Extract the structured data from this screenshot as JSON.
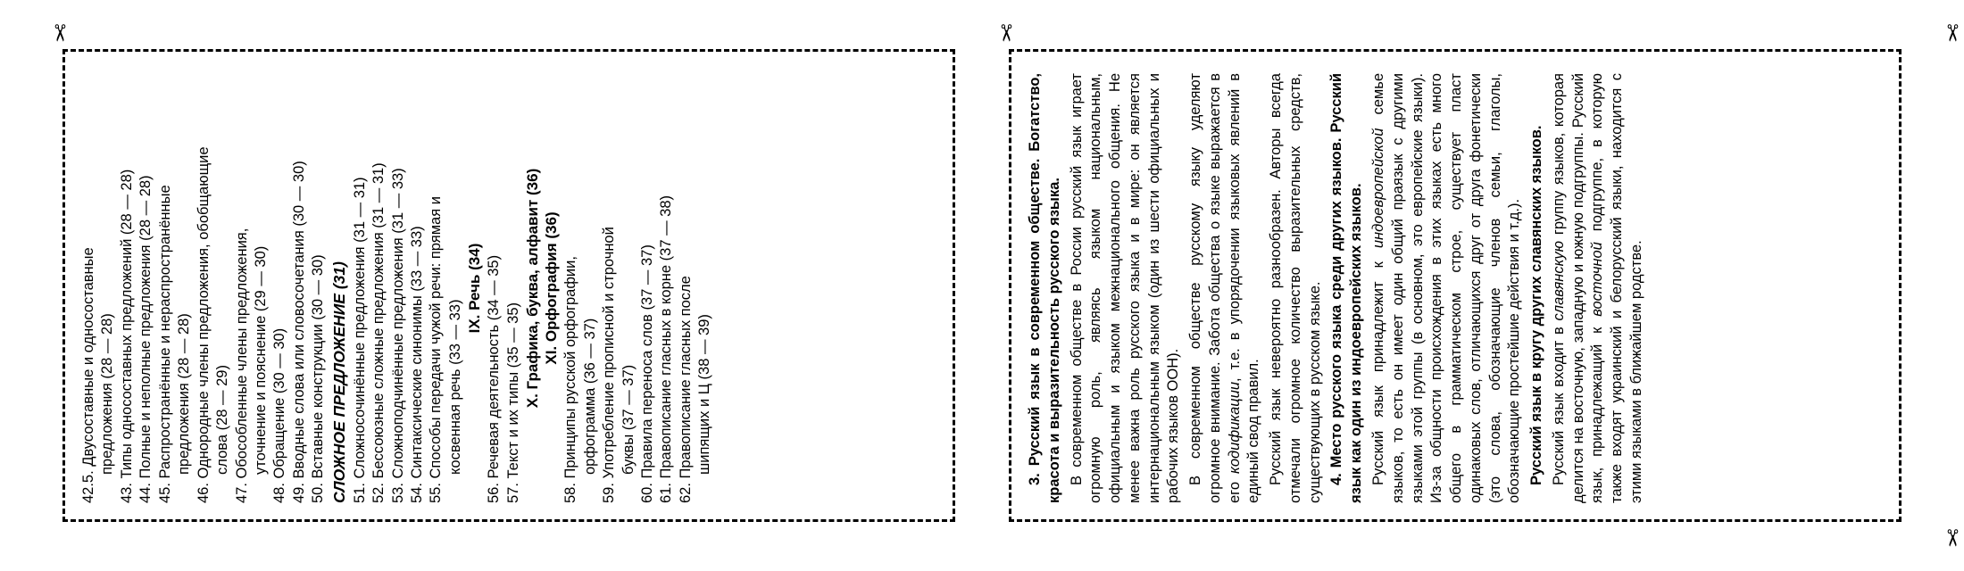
{
  "scissors": "✂",
  "left": {
    "toc": [
      {
        "t": "42.5. Двусоставные и односоставные",
        "sub": 0
      },
      {
        "t": "предложения (28 — 28)",
        "sub": 1
      },
      {
        "t": "43. Типы односоставных предложений (28 — 28)",
        "sub": 0
      },
      {
        "t": "44. Полные и неполные предложения (28 — 28)",
        "sub": 0
      },
      {
        "t": "45. Распространённые и нераспространённые",
        "sub": 0
      },
      {
        "t": "предложения (28 — 28)",
        "sub": 1
      },
      {
        "t": "46. Однородные члены предложения, обобщающие",
        "sub": 0
      },
      {
        "t": "слова (28 — 29)",
        "sub": 1
      },
      {
        "t": "47. Обособленные члены предложения,",
        "sub": 0
      },
      {
        "t": "уточнение и пояснение (29 — 30)",
        "sub": 1
      },
      {
        "t": "48. Обращение (30 — 30)",
        "sub": 0
      },
      {
        "t": "49. Вводные слова или словосочетания (30 — 30)",
        "sub": 0
      },
      {
        "t": "50. Вставные конструкции (30 — 30)",
        "sub": 0
      }
    ],
    "sec1": "СЛОЖНОЕ ПРЕДЛОЖЕНИЕ (31)",
    "toc2": [
      {
        "t": "51. Сложносочинённые предложения (31 — 31)",
        "sub": 0
      },
      {
        "t": "52. Бессоюзные сложные предложения (31 — 31)",
        "sub": 0
      },
      {
        "t": "53. Сложноподчинённые предложения (31 — 33)",
        "sub": 0
      },
      {
        "t": "54. Синтаксические синонимы (33 — 33)",
        "sub": 0
      },
      {
        "t": "55. Способы передачи чужой речи: прямая и",
        "sub": 0
      },
      {
        "t": "косвенная речь (33 — 33)",
        "sub": 1
      }
    ],
    "head1": "IX. Речь (34)",
    "toc3": [
      {
        "t": "56. Речевая деятельность (34 — 35)",
        "sub": 0
      },
      {
        "t": "57. Текст и их типы (35 — 35)",
        "sub": 0
      }
    ],
    "head2": "X. Графика, буква, алфавит (36)",
    "head3": "XI. Орфография (36)",
    "toc4": [
      {
        "t": "58. Принципы русской орфографии,",
        "sub": 0
      },
      {
        "t": "орфограмма (36 — 37)",
        "sub": 1
      },
      {
        "t": "59. Употребление прописной и строчной",
        "sub": 0
      },
      {
        "t": "буквы (37 — 37)",
        "sub": 1
      },
      {
        "t": "60. Правила переноса слов (37 — 37)",
        "sub": 0
      },
      {
        "t": "61. Правописание гласных в корне (37 — 38)",
        "sub": 0
      },
      {
        "t": "62. Правописание гласных после",
        "sub": 0
      },
      {
        "t": "шипящих и Ц (38 — 39)",
        "sub": 1
      }
    ]
  },
  "right": {
    "h1": "3. Русский язык в современном обществе. Богатство, красота и выразительность русского языка.",
    "p1": "В современном обществе в России русский язык играет огромную роль, являясь языком национальным, официальным и языком межнационального общения. Не менее важна роль русского языка и в мире: он является интернациональным языком (один из шести официальных и рабочих языков ООН).",
    "p2a": "В современном обществе русскому языку уделяют огромное внимание. Забота общества о языке выражается в его ",
    "p2i": "кодификации",
    "p2b": ", т.е. в упорядочении языковых явлений в единый свод правил.",
    "p3": "Русский язык невероятно разнообразен. Авторы всегда отмечали огромное количество выразительных средств, существующих в русском языке.",
    "h2": "4. Место русского языка среди других языков. Русский язык как один из индоевропейских языков.",
    "p4a": "Русский язык принадлежит к ",
    "p4i": "индоевропейской",
    "p4b": " семье языков, то есть он имеет один общий праязык с другими языками этой группы (в основном, это европейские языки). Из-за общности происхождения в этих языках есть много общего в грамматическом строе, существует пласт одинаковых слов, отличающихся друг от друга фонетически (это слова, обозначающие членов семьи, глаголы, обозначающие простейшие действия и т.д.).",
    "h3": "Русский язык в кругу других славянских языков.",
    "p5a": "Русский язык входит в ",
    "p5i": "славянскую",
    "p5b": " группу языков, которая делится на восточную, западную и южную подгруппы. Русский язык, принадлежащий к ",
    "p5i2": "восточной",
    "p5c": " подгруппе, в которую также входят украинский и белорусский языки, находится с этими языками в ближайшем родстве."
  }
}
